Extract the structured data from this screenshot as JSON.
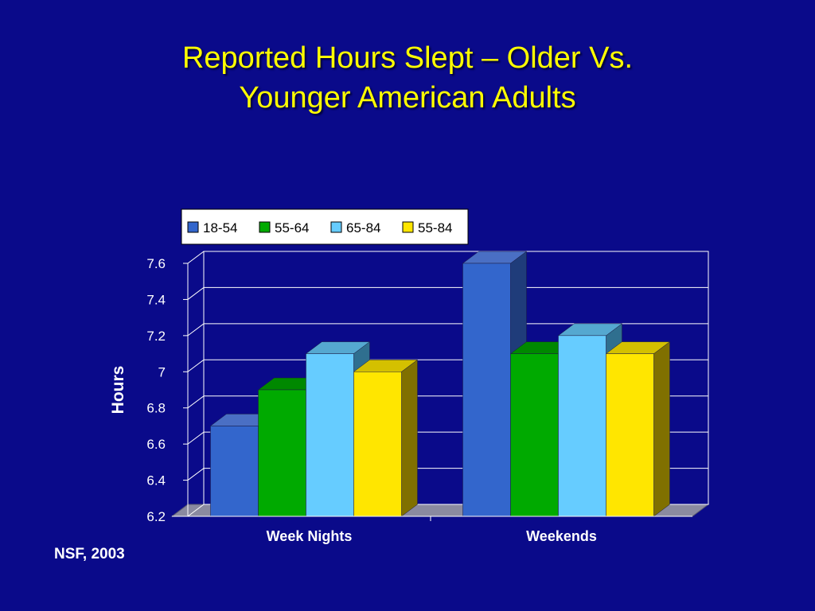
{
  "slide": {
    "title_line1": "Reported Hours Slept – Older Vs.",
    "title_line2": "Younger American Adults",
    "source": "NSF, 2003"
  },
  "chart_data": {
    "type": "bar",
    "style": "3d-clustered-column",
    "categories": [
      "Week Nights",
      "Weekends"
    ],
    "series": [
      {
        "name": "18-54",
        "values": [
          6.7,
          7.6
        ],
        "color": "#3366cc",
        "side": "#1f3c7a",
        "top": "#4a6fc4"
      },
      {
        "name": "55-64",
        "values": [
          6.9,
          7.1
        ],
        "color": "#00aa00",
        "side": "#006600",
        "top": "#008800"
      },
      {
        "name": "65-84",
        "values": [
          7.1,
          7.2
        ],
        "color": "#66ccff",
        "side": "#2f6f8f",
        "top": "#55a8d0"
      },
      {
        "name": "55-84",
        "values": [
          7.0,
          7.1
        ],
        "color": "#ffe600",
        "side": "#807000",
        "top": "#d4c000"
      }
    ],
    "ylabel": "Hours",
    "xlabel": "",
    "ylim": [
      6.2,
      7.6
    ],
    "yticks": [
      "6.2",
      "6.4",
      "6.6",
      "6.8",
      "7",
      "7.2",
      "7.4",
      "7.6"
    ],
    "grid": true,
    "legend_position": "top"
  }
}
